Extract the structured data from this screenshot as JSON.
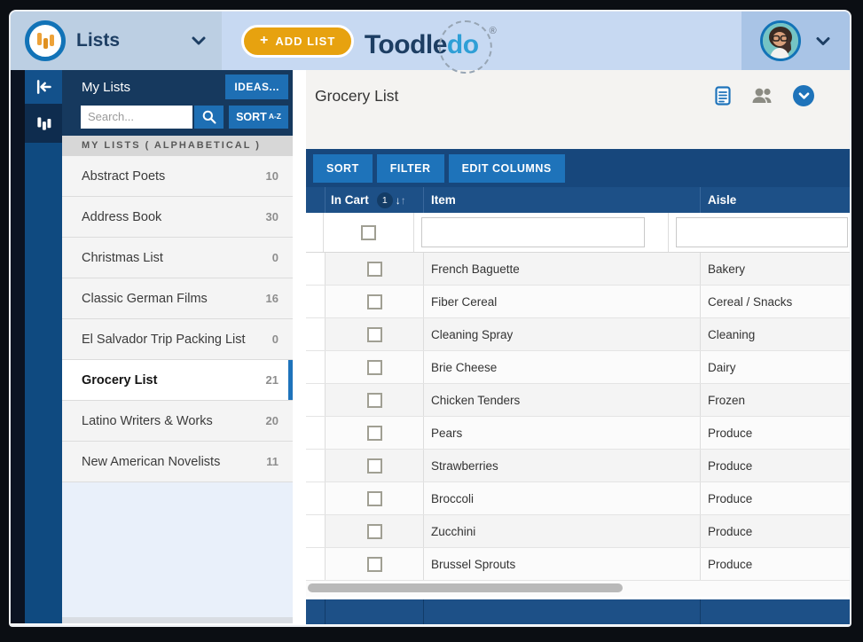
{
  "header": {
    "nav_label": "Lists",
    "add_list": {
      "plus": "+",
      "label": "ADD LIST"
    },
    "brand": {
      "first": "Toodle",
      "second": "do",
      "registered": "®"
    }
  },
  "sidebar": {
    "title": "My Lists",
    "ideas_label": "IDEAS...",
    "search_placeholder": "Search...",
    "sort_label": "SORT",
    "sort_order_badge": "A-Z",
    "section_header": "MY LISTS ( ALPHABETICAL )",
    "items": [
      {
        "label": "Abstract Poets",
        "count": "10",
        "selected": false
      },
      {
        "label": "Address Book",
        "count": "30",
        "selected": false
      },
      {
        "label": "Christmas List",
        "count": "0",
        "selected": false
      },
      {
        "label": "Classic German Films",
        "count": "16",
        "selected": false
      },
      {
        "label": "El Salvador Trip Packing List",
        "count": "0",
        "selected": false
      },
      {
        "label": "Grocery List",
        "count": "21",
        "selected": true
      },
      {
        "label": "Latino Writers & Works",
        "count": "20",
        "selected": false
      },
      {
        "label": "New American Novelists",
        "count": "11",
        "selected": false
      }
    ]
  },
  "main": {
    "title": "Grocery List",
    "toolbar": {
      "sort": "SORT",
      "filter": "FILTER",
      "edit_columns": "EDIT COLUMNS"
    },
    "table": {
      "columns": {
        "in_cart": "In Cart",
        "item": "Item",
        "aisle": "Aisle"
      },
      "sort_indicator": {
        "priority": "1",
        "down_arrow": "↓",
        "up_arrow": "↑"
      },
      "filter_inputs": {
        "item_value": "",
        "aisle_value": ""
      },
      "rows": [
        {
          "item": "French Baguette",
          "aisle": "Bakery",
          "checked": false
        },
        {
          "item": "Fiber Cereal",
          "aisle": "Cereal / Snacks",
          "checked": false
        },
        {
          "item": "Cleaning Spray",
          "aisle": "Cleaning",
          "checked": false
        },
        {
          "item": "Brie Cheese",
          "aisle": "Dairy",
          "checked": false
        },
        {
          "item": "Chicken Tenders",
          "aisle": "Frozen",
          "checked": false
        },
        {
          "item": "Pears",
          "aisle": "Produce",
          "checked": false
        },
        {
          "item": "Strawberries",
          "aisle": "Produce",
          "checked": false
        },
        {
          "item": "Broccoli",
          "aisle": "Produce",
          "checked": false
        },
        {
          "item": "Zucchini",
          "aisle": "Produce",
          "checked": false
        },
        {
          "item": "Brussel Sprouts",
          "aisle": "Produce",
          "checked": false
        }
      ]
    }
  },
  "colors": {
    "accent_blue": "#1e73ba",
    "toolbar_navy": "#17477c",
    "table_header_navy": "#1d5087",
    "sidebar_navy": "#16395e",
    "header_light_blue": "#c7d9f2",
    "brand_orange": "#e7a20f",
    "brand_navy": "#1d3e63",
    "brand_cyan": "#2f9fd6",
    "selected_bar_blue": "#1e73bb"
  }
}
